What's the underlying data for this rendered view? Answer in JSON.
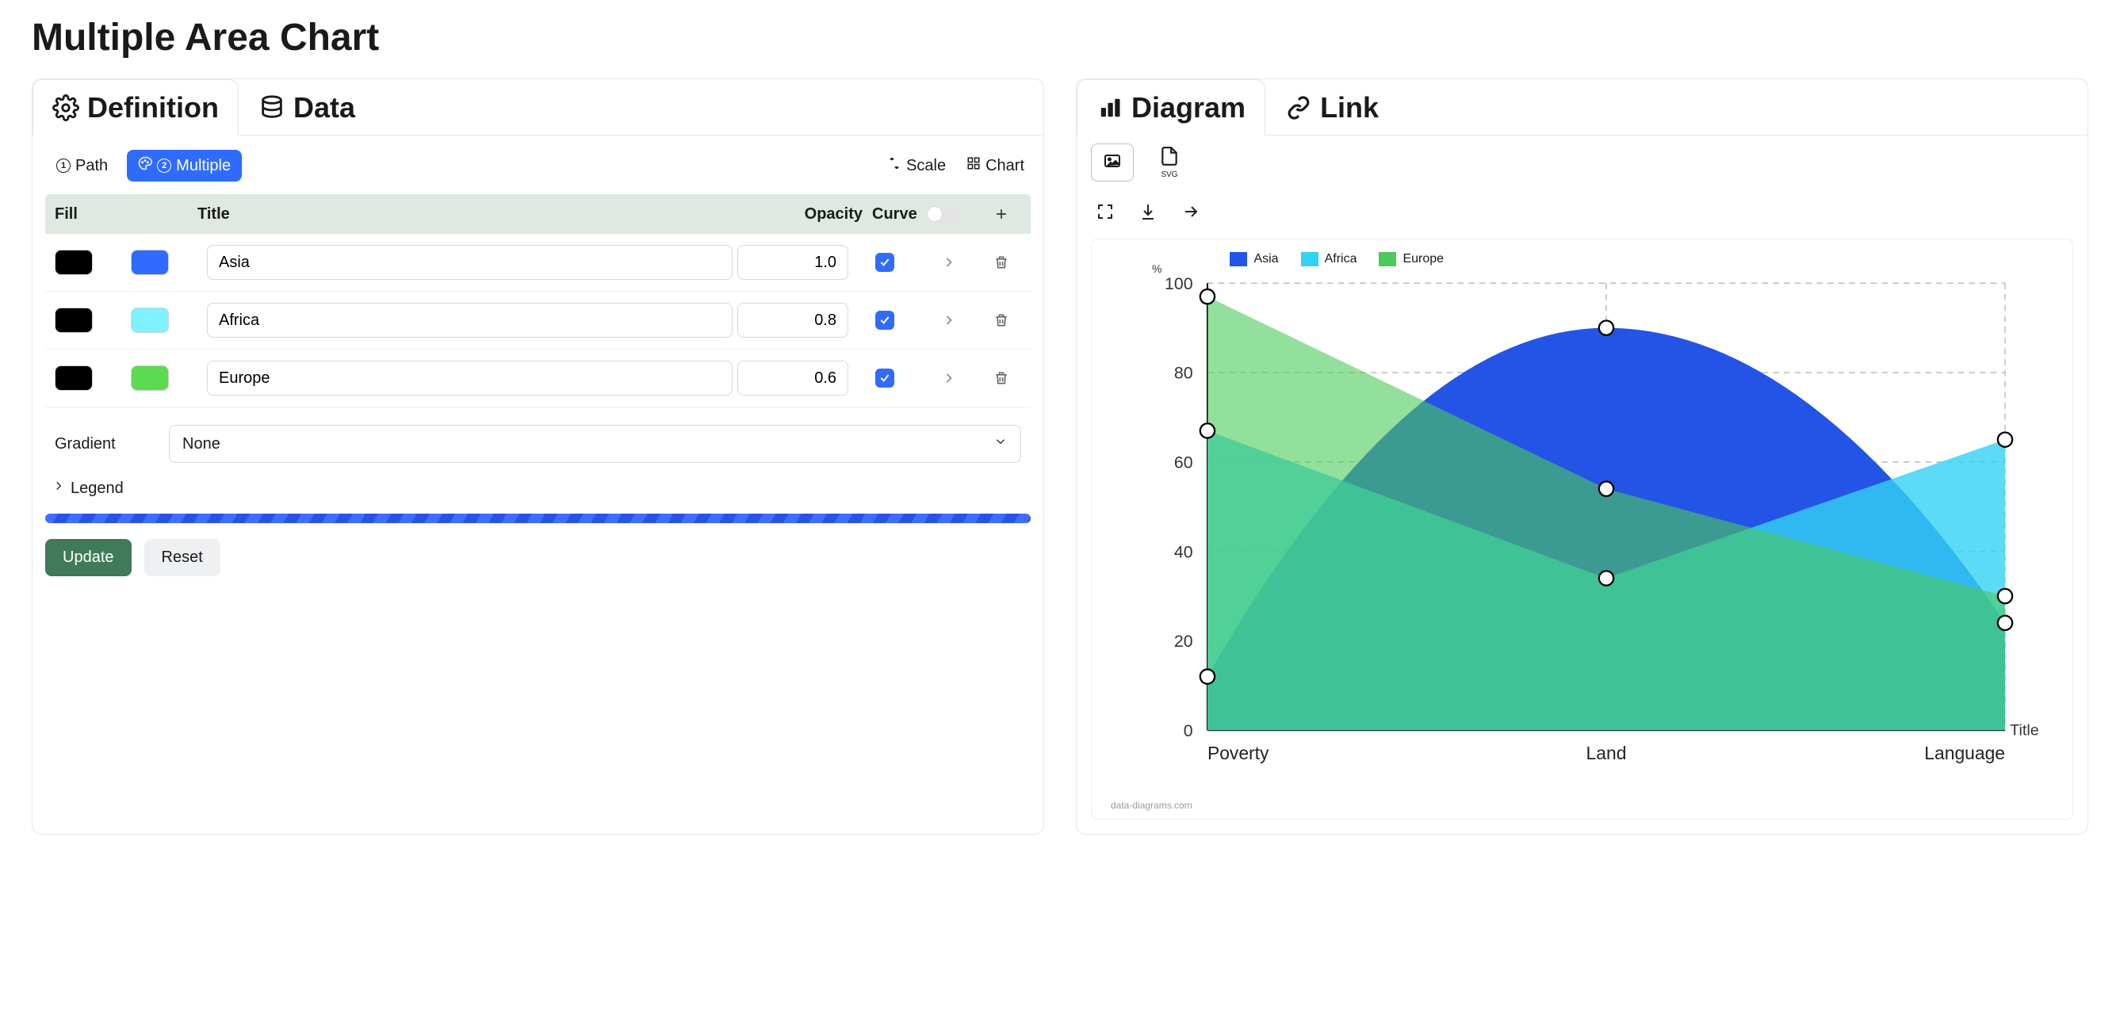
{
  "page_title": "Multiple Area Chart",
  "left_tabs": [
    {
      "id": "definition",
      "label": "Definition",
      "icon": "gear",
      "active": true
    },
    {
      "id": "data",
      "label": "Data",
      "icon": "db",
      "active": false
    }
  ],
  "sub_tabs": {
    "path": {
      "num": "1",
      "label": "Path"
    },
    "multiple": {
      "num": "2",
      "label": "Multiple"
    }
  },
  "sub_right": {
    "scale": "Scale",
    "chart": "Chart"
  },
  "series_header": {
    "fill": "Fill",
    "title": "Title",
    "opacity": "Opacity",
    "curve": "Curve"
  },
  "series": [
    {
      "stroke": "#000000",
      "fill": "#2f6bff",
      "title": "Asia",
      "opacity": "1.0",
      "curve": true
    },
    {
      "stroke": "#000000",
      "fill": "#7ff1ff",
      "title": "Africa",
      "opacity": "0.8",
      "curve": true
    },
    {
      "stroke": "#000000",
      "fill": "#5bdb52",
      "title": "Europe",
      "opacity": "0.6",
      "curve": true
    }
  ],
  "gradient": {
    "label": "Gradient",
    "value": "None"
  },
  "legend_toggle": "Legend",
  "buttons": {
    "update": "Update",
    "reset": "Reset"
  },
  "right_tabs": [
    {
      "id": "diagram",
      "label": "Diagram",
      "icon": "bars",
      "active": true
    },
    {
      "id": "link",
      "label": "Link",
      "icon": "link",
      "active": false
    }
  ],
  "formats": {
    "svg": "SVG"
  },
  "chart": {
    "y_unit": "%",
    "x_axis_title": "Title",
    "ylim": [
      0,
      100
    ],
    "ytick_step": 20,
    "grid_color": "#bdbdbd",
    "background": "#ffffff",
    "categories": [
      "Poverty",
      "Land",
      "Language"
    ],
    "series": [
      {
        "name": "Asia",
        "color": "#2454e6",
        "opacity": 1.0,
        "curve": true,
        "values": [
          12,
          90,
          24
        ]
      },
      {
        "name": "Africa",
        "color": "#32d2f2",
        "opacity": 0.8,
        "curve": false,
        "values": [
          67,
          34,
          65
        ]
      },
      {
        "name": "Europe",
        "color": "#4bc95a",
        "opacity": 0.6,
        "curve": false,
        "values": [
          97,
          54,
          30
        ]
      }
    ],
    "legend": [
      "Asia",
      "Africa",
      "Europe"
    ],
    "legend_colors": [
      "#2454e6",
      "#32d2f2",
      "#4bc95a"
    ],
    "watermark": "data-diagrams.com"
  }
}
